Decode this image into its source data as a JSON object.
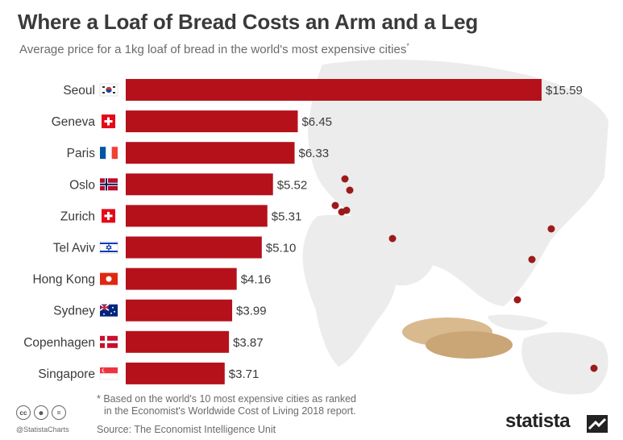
{
  "title": "Where a Loaf of Bread Costs an Arm and a Leg",
  "subtitle": "Average price for a 1kg loaf of bread in the world's most expensive cities",
  "subtitle_mark": "*",
  "footnote_lines": [
    "* Based on the world's 10 most expensive cities as ranked",
    "in the Economist's Worldwide Cost of Living 2018 report."
  ],
  "source": "Source: The Economist Intelligence Unit",
  "handle": "@StatistaCharts",
  "brand": "statista",
  "colors": {
    "bar": "#b5111b",
    "text": "#3a3a3a",
    "map": "#ececec",
    "dot": "#9c1a1a"
  },
  "chart_data": {
    "type": "bar",
    "orientation": "horizontal",
    "categories": [
      "Seoul",
      "Geneva",
      "Paris",
      "Oslo",
      "Zurich",
      "Tel Aviv",
      "Hong Kong",
      "Sydney",
      "Copenhagen",
      "Singapore"
    ],
    "values": [
      15.59,
      6.45,
      6.33,
      5.52,
      5.31,
      5.1,
      4.16,
      3.99,
      3.87,
      3.71
    ],
    "value_labels": [
      "$15.59",
      "$6.45",
      "$6.33",
      "$5.52",
      "$5.31",
      "$5.10",
      "$4.16",
      "$3.99",
      "$3.87",
      "$3.71"
    ],
    "flags": [
      "south-korea-flag",
      "switzerland-flag",
      "france-flag",
      "norway-flag",
      "switzerland-flag",
      "israel-flag",
      "hong-kong-flag",
      "australia-flag",
      "denmark-flag",
      "singapore-flag"
    ],
    "xlim": [
      0,
      15.59
    ],
    "grid": false,
    "legend": "none"
  }
}
